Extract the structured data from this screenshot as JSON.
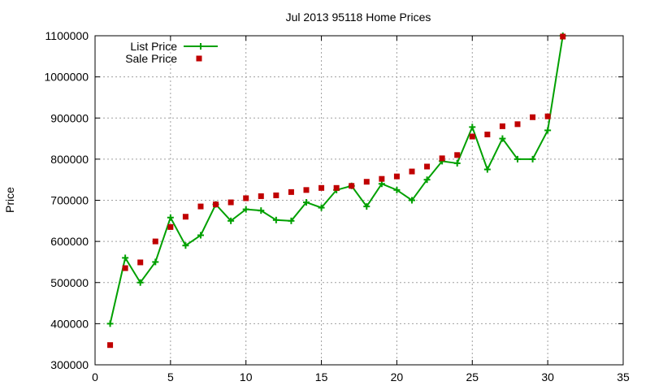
{
  "chart_data": {
    "type": "line",
    "title": "Jul 2013 95118 Home Prices",
    "xlabel": "",
    "ylabel": "Price",
    "xlim": [
      0,
      35
    ],
    "ylim": [
      300000,
      1100000
    ],
    "x_ticks": [
      "0",
      "5",
      "10",
      "15",
      "20",
      "25",
      "30",
      "35"
    ],
    "y_ticks": [
      "300000",
      "400000",
      "500000",
      "600000",
      "700000",
      "800000",
      "900000",
      "1000000",
      "1100000"
    ],
    "grid": true,
    "legend_position": "top-left",
    "series": [
      {
        "name": "List Price",
        "style": "line+cross",
        "color": "#00a000",
        "x": [
          1,
          2,
          3,
          4,
          5,
          6,
          7,
          8,
          9,
          10,
          11,
          12,
          13,
          14,
          15,
          16,
          17,
          18,
          19,
          20,
          21,
          22,
          23,
          24,
          25,
          26,
          27,
          28,
          29,
          30,
          31
        ],
        "values": [
          400000,
          560000,
          500000,
          550000,
          658000,
          590000,
          615000,
          690000,
          650000,
          678000,
          675000,
          652000,
          650000,
          695000,
          682000,
          725000,
          735000,
          685000,
          740000,
          725000,
          700000,
          750000,
          795000,
          790000,
          878000,
          775000,
          850000,
          800000,
          800000,
          870000,
          1100000
        ]
      },
      {
        "name": "Sale Price",
        "style": "square",
        "color": "#c00000",
        "x": [
          1,
          2,
          3,
          4,
          5,
          6,
          7,
          8,
          9,
          10,
          11,
          12,
          13,
          14,
          15,
          16,
          17,
          18,
          19,
          20,
          21,
          22,
          23,
          24,
          25,
          26,
          27,
          28,
          29,
          30,
          31
        ],
        "values": [
          348000,
          535000,
          549000,
          600000,
          635000,
          660000,
          685000,
          690000,
          695000,
          705000,
          710000,
          712000,
          720000,
          725000,
          730000,
          730000,
          735000,
          745000,
          752000,
          758000,
          770000,
          782000,
          802000,
          810000,
          855000,
          860000,
          880000,
          885000,
          902000,
          904000,
          1098000
        ]
      }
    ]
  }
}
